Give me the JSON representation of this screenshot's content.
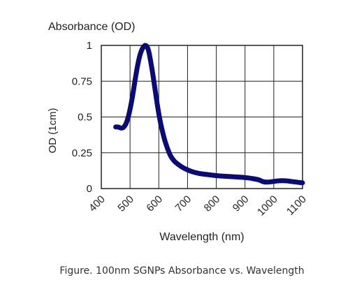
{
  "chart_data": {
    "type": "line",
    "title": "Absorbance (OD)",
    "xlabel": "Wavelength (nm)",
    "ylabel": "OD (1cm)",
    "xlim": [
      400,
      1100
    ],
    "ylim": [
      0,
      1
    ],
    "xticks": [
      "400",
      "500",
      "600",
      "700",
      "800",
      "900",
      "1000",
      "1100"
    ],
    "yticks": [
      "0",
      "0.25",
      "0.5",
      "0.75",
      "1"
    ],
    "grid": true,
    "series_color": "#0a0a78",
    "x": [
      450,
      460,
      470,
      480,
      490,
      500,
      510,
      520,
      530,
      540,
      550,
      555,
      560,
      565,
      570,
      580,
      590,
      600,
      610,
      620,
      630,
      640,
      650,
      660,
      680,
      700,
      720,
      740,
      760,
      780,
      800,
      820,
      840,
      860,
      880,
      900,
      920,
      940,
      950,
      960,
      970,
      980,
      1000,
      1020,
      1040,
      1060,
      1080,
      1100
    ],
    "y": [
      0.43,
      0.43,
      0.42,
      0.43,
      0.47,
      0.55,
      0.66,
      0.79,
      0.9,
      0.97,
      1.0,
      1.0,
      0.99,
      0.96,
      0.91,
      0.79,
      0.65,
      0.52,
      0.42,
      0.34,
      0.28,
      0.23,
      0.2,
      0.18,
      0.15,
      0.13,
      0.115,
      0.105,
      0.1,
      0.095,
      0.09,
      0.087,
      0.085,
      0.082,
      0.08,
      0.077,
      0.072,
      0.065,
      0.06,
      0.05,
      0.045,
      0.045,
      0.05,
      0.055,
      0.055,
      0.05,
      0.045,
      0.04
    ]
  },
  "caption": "Figure. 100nm SGNPs Absorbance vs. Wavelength"
}
